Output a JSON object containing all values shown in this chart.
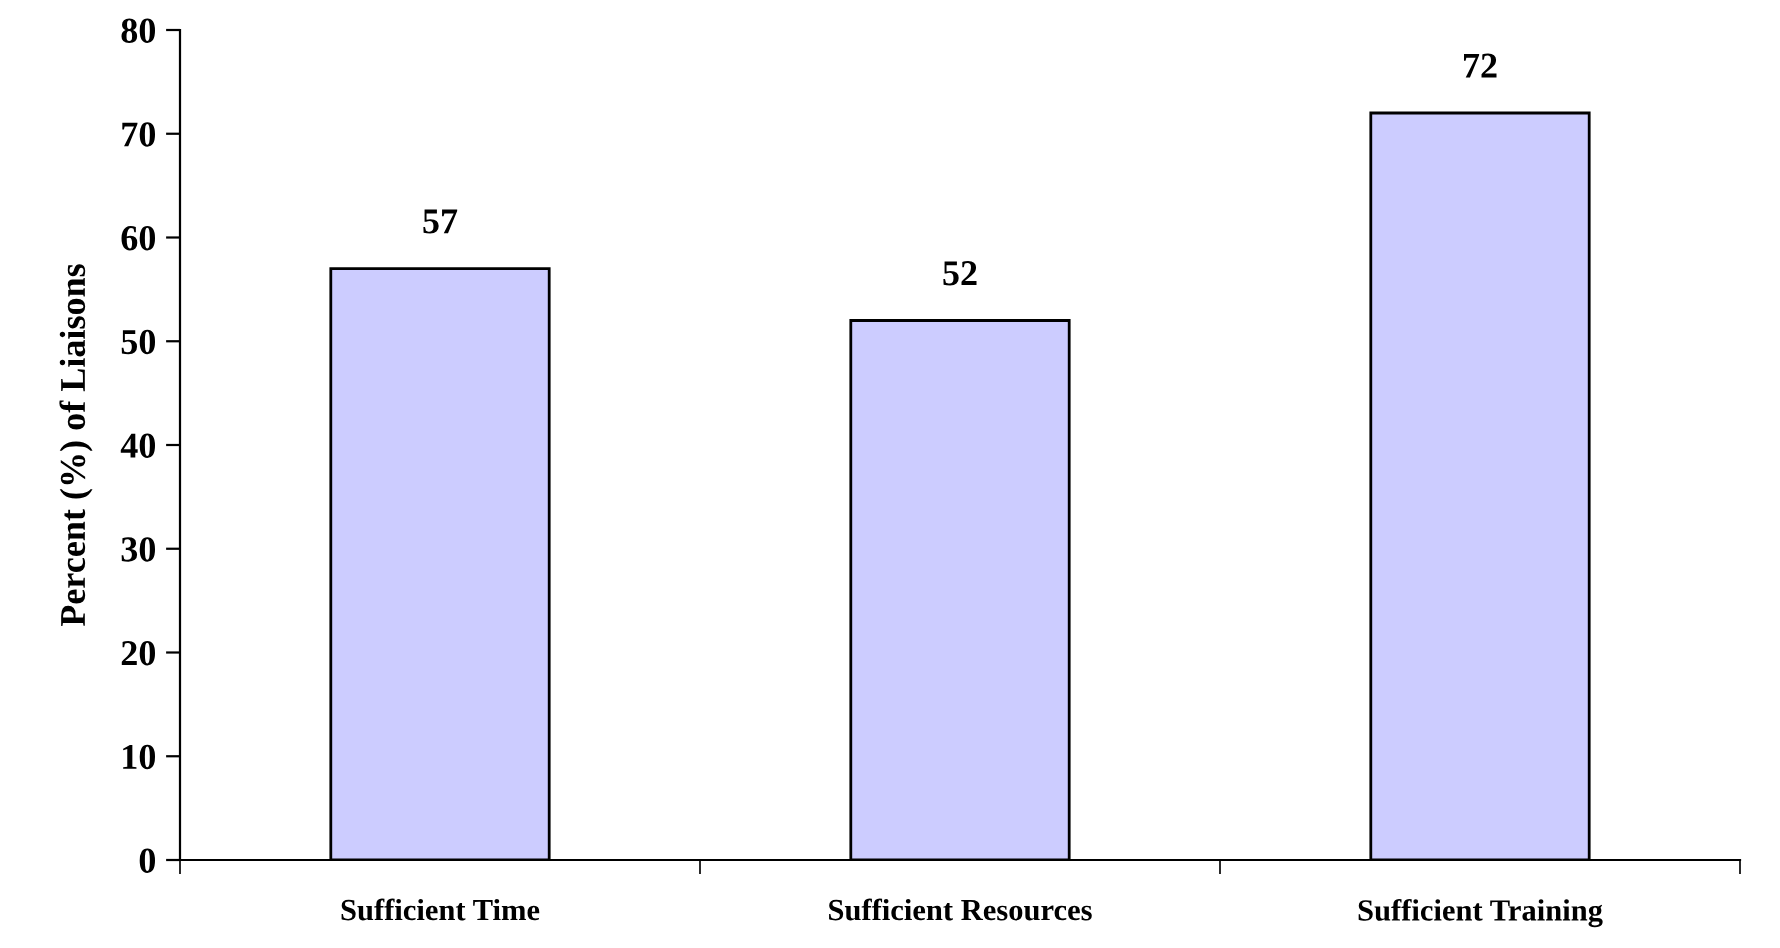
{
  "chart_data": {
    "type": "bar",
    "ylabel": "Percent (%) of Liaisons",
    "categories": [
      "Sufficient Time",
      "Sufficient Resources",
      "Sufficient Training"
    ],
    "values": [
      57,
      52,
      72
    ],
    "color": "#ccccff",
    "ylim": [
      0,
      80
    ],
    "yticks": [
      0,
      10,
      20,
      30,
      40,
      50,
      60,
      70,
      80
    ],
    "data_labels": true,
    "grid": false
  }
}
